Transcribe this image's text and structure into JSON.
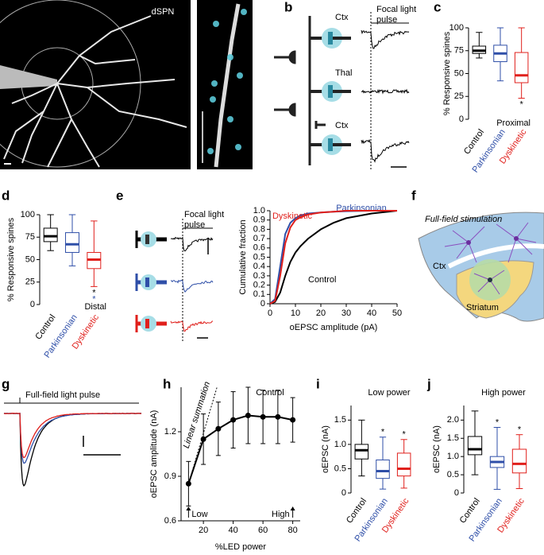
{
  "figure": {
    "panel_labels": [
      "a",
      "b",
      "c",
      "d",
      "e",
      "f",
      "g",
      "h",
      "i",
      "j"
    ],
    "a": {
      "cell": "dSPN"
    },
    "b": {
      "inputs": [
        "Ctx",
        "Thal",
        "Ctx"
      ],
      "pulse": [
        "Focal light",
        "pulse"
      ]
    },
    "e": {
      "pulse": [
        "Focal light",
        "pulse"
      ]
    },
    "f": {
      "title": "Full-field stimulation",
      "regions": [
        "Ctx",
        "Striatum"
      ]
    },
    "g": {
      "pulse": "Full-field light pulse"
    }
  },
  "chart_data": [
    {
      "type": "box",
      "ylabel": "% Responsive spines",
      "ylim": [
        0,
        100
      ],
      "yticks": [
        0,
        25,
        50,
        75,
        100
      ],
      "categories": [
        "Control",
        "Parkinsonian",
        "Dyskinetic"
      ],
      "colors": [
        "#000000",
        "#2f4fa8",
        "#e0201c"
      ],
      "boxes": [
        {
          "min": 67,
          "q1": 72,
          "median": 75,
          "q3": 80,
          "max": 95
        },
        {
          "min": 42,
          "q1": 63,
          "median": 72,
          "q3": 81,
          "max": 100
        },
        {
          "min": 23,
          "q1": 40,
          "median": 48,
          "q3": 73,
          "max": 100,
          "notes": [
            {
              "text": "*",
              "color": "#000000"
            }
          ]
        }
      ],
      "label": "Proximal",
      "note_side": "below"
    },
    {
      "type": "box",
      "ylabel": "% Responsive spines",
      "ylim": [
        0,
        100
      ],
      "yticks": [
        0,
        25,
        50,
        75,
        100
      ],
      "categories": [
        "Control",
        "Parkinsonian",
        "Dyskinetic"
      ],
      "colors": [
        "#000000",
        "#2f4fa8",
        "#e0201c"
      ],
      "boxes": [
        {
          "min": 60,
          "q1": 70,
          "median": 76,
          "q3": 85,
          "max": 100
        },
        {
          "min": 43,
          "q1": 58,
          "median": 67,
          "q3": 80,
          "max": 100
        },
        {
          "min": 20,
          "q1": 40,
          "median": 50,
          "q3": 58,
          "max": 93,
          "notes": [
            {
              "text": "*",
              "color": "#000000"
            },
            {
              "text": "*",
              "color": "#2f4fa8"
            }
          ]
        }
      ],
      "label": "Distal",
      "note_side": "below"
    },
    {
      "type": "line",
      "xlabel": "oEPSC amplitude (pA)",
      "ylabel": "Cumulative fraction",
      "xlim": [
        0,
        50
      ],
      "xticks": [
        0,
        10,
        20,
        30,
        40,
        50
      ],
      "ylim": [
        0,
        1
      ],
      "yticks": [
        0,
        0.1,
        0.2,
        0.3,
        0.4,
        0.5,
        0.6,
        0.7,
        0.8,
        0.9,
        {
          "value": 1,
          "label": "1.0"
        }
      ],
      "x": [
        0,
        2,
        4,
        6,
        8,
        10,
        12,
        15,
        20,
        25,
        30,
        40,
        50
      ],
      "series": [
        {
          "name": "Control",
          "color": "#000000",
          "values": [
            0,
            0.02,
            0.12,
            0.3,
            0.45,
            0.55,
            0.62,
            0.7,
            0.8,
            0.87,
            0.92,
            0.97,
            1
          ]
        },
        {
          "name": "Parkinsonian",
          "color": "#2f4fa8",
          "values": [
            0,
            0.05,
            0.4,
            0.75,
            0.87,
            0.92,
            0.95,
            0.97,
            0.98,
            0.99,
            0.995,
            1,
            1
          ]
        },
        {
          "name": "Dyskinetic",
          "color": "#e0201c",
          "values": [
            0,
            0.03,
            0.3,
            0.65,
            0.82,
            0.9,
            0.93,
            0.96,
            0.98,
            0.99,
            1,
            1,
            1
          ]
        }
      ]
    },
    {
      "type": "line",
      "xlabel": "%LED power",
      "ylabel": "oEPSC amplitude (nA)",
      "xlim": [
        5,
        85
      ],
      "xticks": [
        20,
        40,
        60,
        80
      ],
      "ylim": [
        0.6,
        1.5
      ],
      "yticks": [
        0.6,
        0.9,
        1.2
      ],
      "x": [
        10,
        20,
        30,
        40,
        50,
        60,
        70,
        80
      ],
      "series": [
        {
          "name": "Control",
          "color": "#000000",
          "values": [
            0.85,
            1.15,
            1.22,
            1.28,
            1.31,
            1.3,
            1.3,
            1.28
          ],
          "err": [
            0.15,
            0.17,
            0.18,
            0.19,
            0.19,
            0.18,
            0.18,
            0.15
          ],
          "markers": true
        },
        {
          "name": "Linear summation",
          "color": "#000000",
          "values": [
            0.85,
            1.19,
            1.53,
            null,
            null,
            null,
            null,
            null
          ],
          "dashed": true
        }
      ],
      "annotations": [
        {
          "text": "Low",
          "x": 10
        },
        {
          "text": "High",
          "x": 80
        }
      ]
    },
    {
      "type": "box",
      "title": "Low power",
      "ylabel": "oEPSC (nA)",
      "ylim": [
        0,
        1.8
      ],
      "yticks": [
        0,
        0.5,
        {
          "value": 1,
          "label": "1.0"
        },
        1.5
      ],
      "categories": [
        "Control",
        "Parkinsonian",
        "Dyskinetic"
      ],
      "colors": [
        "#000000",
        "#2f4fa8",
        "#e0201c"
      ],
      "boxes": [
        {
          "min": 0.35,
          "q1": 0.7,
          "median": 0.88,
          "q3": 1.0,
          "max": 1.5
        },
        {
          "min": 0.08,
          "q1": 0.3,
          "median": 0.45,
          "q3": 0.68,
          "max": 1.15,
          "notes": [
            {
              "text": "*",
              "color": "#000000"
            }
          ]
        },
        {
          "min": 0.1,
          "q1": 0.35,
          "median": 0.5,
          "q3": 0.82,
          "max": 1.1,
          "notes": [
            {
              "text": "*",
              "color": "#000000"
            }
          ]
        }
      ],
      "note_side": "above"
    },
    {
      "type": "box",
      "title": "High power",
      "ylabel": "oEPSC (nA)",
      "ylim": [
        0,
        2.4
      ],
      "yticks": [
        0,
        0.5,
        {
          "value": 1,
          "label": "1.0"
        },
        1.5,
        {
          "value": 2,
          "label": "2.0"
        }
      ],
      "categories": [
        "Control",
        "Parkinsonian",
        "Dyskinetic"
      ],
      "colors": [
        "#000000",
        "#2f4fa8",
        "#e0201c"
      ],
      "boxes": [
        {
          "min": 0.5,
          "q1": 1.05,
          "median": 1.2,
          "q3": 1.55,
          "max": 2.25
        },
        {
          "min": 0.1,
          "q1": 0.7,
          "median": 0.85,
          "q3": 1.0,
          "max": 1.8,
          "notes": [
            {
              "text": "*",
              "color": "#000000"
            }
          ]
        },
        {
          "min": 0.12,
          "q1": 0.55,
          "median": 0.8,
          "q3": 1.2,
          "max": 1.6,
          "notes": [
            {
              "text": "*",
              "color": "#000000"
            }
          ]
        }
      ],
      "note_side": "above"
    }
  ]
}
